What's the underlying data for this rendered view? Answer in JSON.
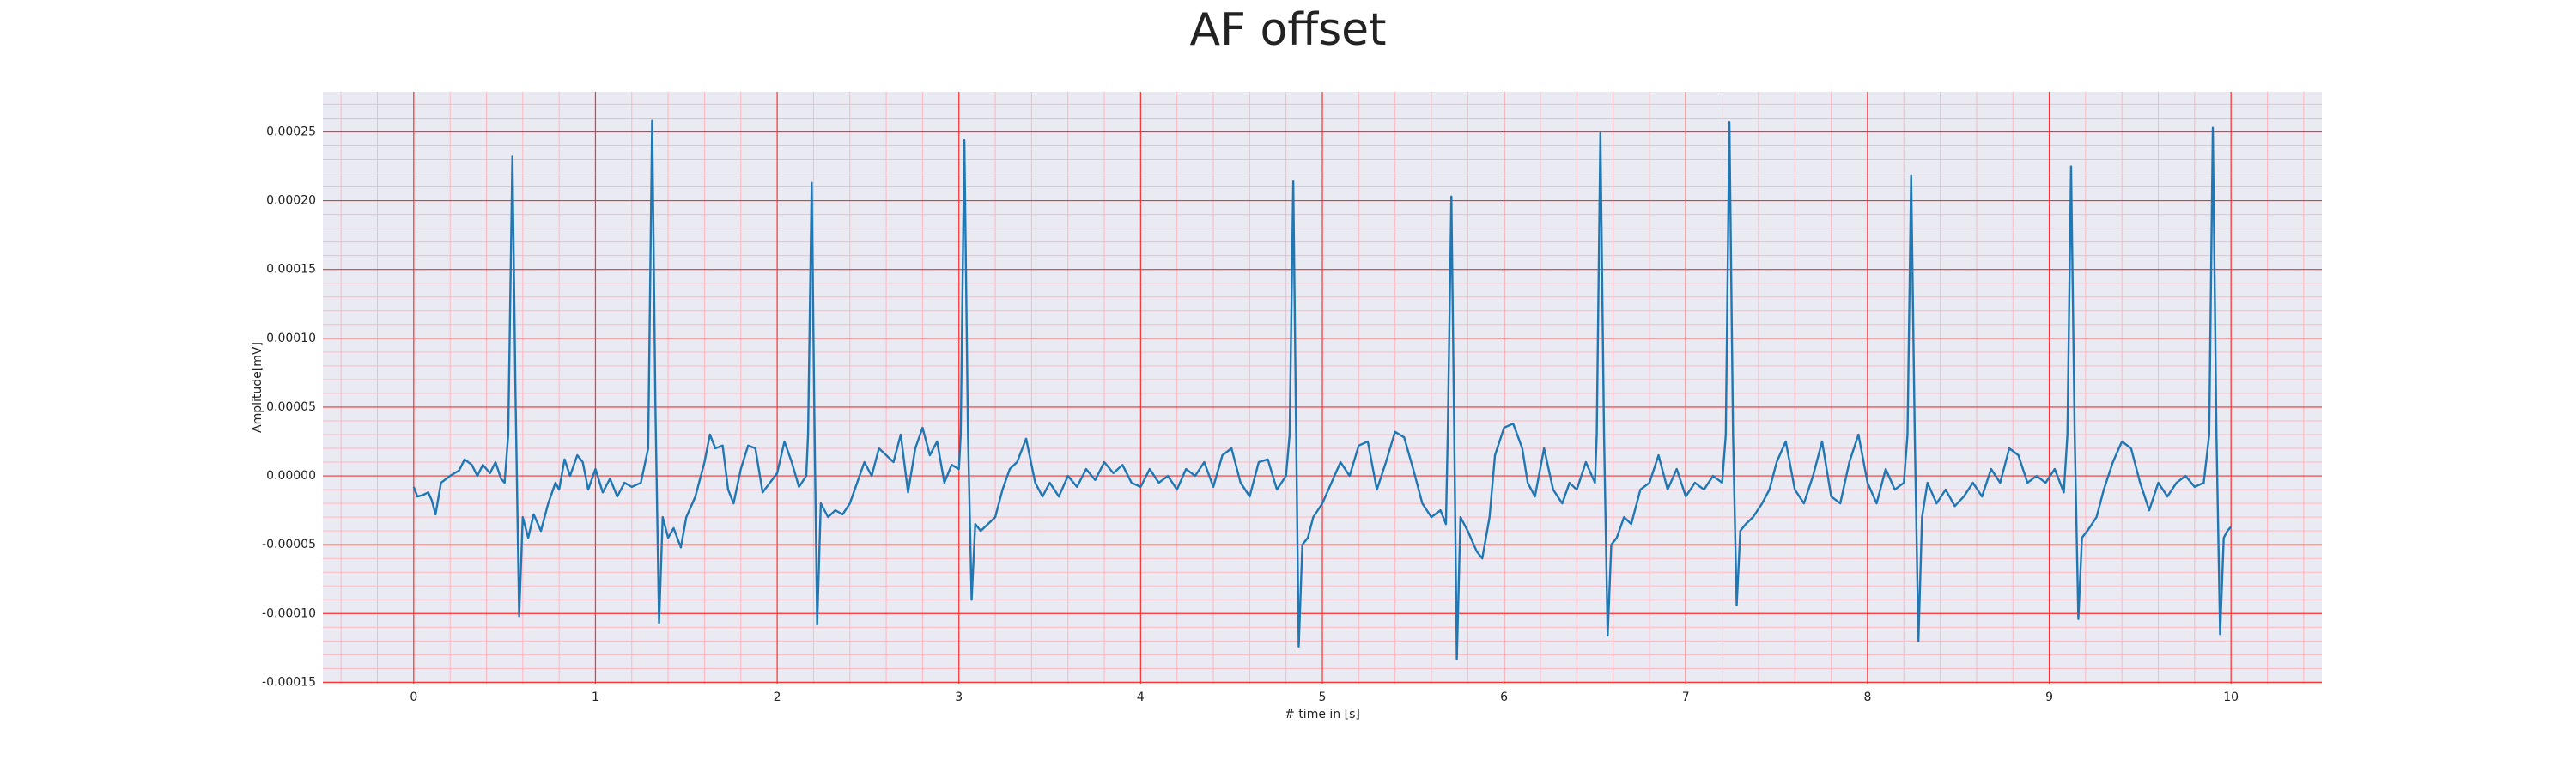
{
  "chart_data": {
    "type": "line",
    "title": "AF offset",
    "xlabel": "# time in [s]",
    "ylabel": "Amplitude[mV]",
    "color": "#1f77b4",
    "grid": true,
    "minor_grid": true,
    "xlim": [
      -0.5,
      10.5
    ],
    "xticks": [
      0,
      1,
      2,
      3,
      4,
      5,
      6,
      7,
      8,
      9,
      10
    ],
    "ylim": [
      -0.000151,
      0.000279
    ],
    "yticks": [
      {
        "value": -0.00015,
        "label": "-0.00015"
      },
      {
        "value": -0.0001,
        "label": "-0.00010"
      },
      {
        "value": -5e-05,
        "label": "-0.00005"
      },
      {
        "value": 0,
        "label": "0.00000"
      },
      {
        "value": 5e-05,
        "label": "0.00005"
      },
      {
        "value": 0.0001,
        "label": "0.00010"
      },
      {
        "value": 0.00015,
        "label": "0.00015"
      },
      {
        "value": 0.0002,
        "label": "0.00020"
      },
      {
        "value": 0.00025,
        "label": "0.00025"
      }
    ],
    "x": [
      0,
      0.02,
      0.05,
      0.08,
      0.1,
      0.12,
      0.15,
      0.2,
      0.25,
      0.28,
      0.32,
      0.35,
      0.38,
      0.42,
      0.45,
      0.48,
      0.5,
      0.52,
      0.543,
      0.56,
      0.58,
      0.6,
      0.63,
      0.66,
      0.7,
      0.74,
      0.78,
      0.8,
      0.83,
      0.86,
      0.9,
      0.93,
      0.96,
      1.0,
      1.04,
      1.08,
      1.12,
      1.16,
      1.2,
      1.25,
      1.29,
      1.312,
      1.33,
      1.35,
      1.37,
      1.4,
      1.43,
      1.47,
      1.5,
      1.55,
      1.6,
      1.63,
      1.66,
      1.7,
      1.73,
      1.76,
      1.8,
      1.84,
      1.88,
      1.92,
      1.96,
      2.0,
      2.04,
      2.08,
      2.12,
      2.16,
      2.17,
      2.19,
      2.205,
      2.22,
      2.24,
      2.28,
      2.32,
      2.36,
      2.4,
      2.44,
      2.48,
      2.52,
      2.56,
      2.6,
      2.64,
      2.68,
      2.72,
      2.76,
      2.8,
      2.84,
      2.88,
      2.92,
      2.96,
      3.0,
      3.01,
      3.03,
      3.05,
      3.07,
      3.09,
      3.12,
      3.16,
      3.2,
      3.24,
      3.28,
      3.32,
      3.37,
      3.42,
      3.46,
      3.5,
      3.55,
      3.6,
      3.65,
      3.7,
      3.75,
      3.8,
      3.85,
      3.9,
      3.95,
      4.0,
      4.05,
      4.1,
      4.15,
      4.2,
      4.25,
      4.3,
      4.35,
      4.4,
      4.45,
      4.5,
      4.55,
      4.6,
      4.65,
      4.7,
      4.75,
      4.8,
      4.82,
      4.84,
      4.855,
      4.87,
      4.89,
      4.92,
      4.95,
      5.0,
      5.05,
      5.1,
      5.15,
      5.2,
      5.25,
      5.3,
      5.35,
      5.4,
      5.45,
      5.5,
      5.55,
      5.6,
      5.65,
      5.68,
      5.69,
      5.71,
      5.725,
      5.74,
      5.76,
      5.8,
      5.85,
      5.88,
      5.92,
      5.95,
      6.0,
      6.05,
      6.1,
      6.13,
      6.17,
      6.22,
      6.27,
      6.32,
      6.36,
      6.4,
      6.45,
      6.5,
      6.51,
      6.53,
      6.55,
      6.57,
      6.59,
      6.62,
      6.66,
      6.7,
      6.75,
      6.8,
      6.85,
      6.9,
      6.95,
      7.0,
      7.05,
      7.1,
      7.15,
      7.2,
      7.22,
      7.24,
      7.26,
      7.28,
      7.3,
      7.33,
      7.37,
      7.42,
      7.46,
      7.5,
      7.55,
      7.6,
      7.65,
      7.7,
      7.75,
      7.8,
      7.85,
      7.9,
      7.95,
      8.0,
      8.05,
      8.1,
      8.15,
      8.2,
      8.22,
      8.24,
      8.26,
      8.28,
      8.3,
      8.33,
      8.38,
      8.43,
      8.48,
      8.53,
      8.58,
      8.63,
      8.68,
      8.73,
      8.78,
      8.83,
      8.88,
      8.93,
      8.98,
      9.03,
      9.08,
      9.1,
      9.12,
      9.14,
      9.16,
      9.18,
      9.22,
      9.26,
      9.3,
      9.35,
      9.4,
      9.45,
      9.5,
      9.55,
      9.6,
      9.65,
      9.7,
      9.75,
      9.8,
      9.85,
      9.88,
      9.9,
      9.92,
      9.94,
      9.96,
      9.98,
      10.0
    ],
    "values": [
      -8e-06,
      -1.5e-05,
      -1.4e-05,
      -1.2e-05,
      -1.8e-05,
      -2.8e-05,
      -5e-06,
      0,
      4e-06,
      1.2e-05,
      8e-06,
      0,
      8e-06,
      2e-06,
      1e-05,
      -2e-06,
      -5e-06,
      3e-05,
      0.000232,
      6e-05,
      -0.000102,
      -3e-05,
      -4.5e-05,
      -2.8e-05,
      -4e-05,
      -2e-05,
      -5e-06,
      -1e-05,
      1.2e-05,
      0,
      1.5e-05,
      1e-05,
      -1e-05,
      5e-06,
      -1.2e-05,
      -2e-06,
      -1.5e-05,
      -5e-06,
      -8e-06,
      -5e-06,
      2e-05,
      0.000258,
      5e-05,
      -0.000107,
      -3e-05,
      -4.5e-05,
      -3.8e-05,
      -5.2e-05,
      -3e-05,
      -1.5e-05,
      1e-05,
      3e-05,
      2e-05,
      2.2e-05,
      -1e-05,
      -2e-05,
      5e-06,
      2.2e-05,
      2e-05,
      -1.2e-05,
      -5e-06,
      2e-06,
      2.5e-05,
      1e-05,
      -8e-06,
      0,
      3e-05,
      0.000213,
      4e-05,
      -0.000108,
      -2e-05,
      -3e-05,
      -2.5e-05,
      -2.8e-05,
      -2e-05,
      -5e-06,
      1e-05,
      0,
      2e-05,
      1.5e-05,
      1e-05,
      3e-05,
      -1.2e-05,
      2e-05,
      3.5e-05,
      1.5e-05,
      2.5e-05,
      -5e-06,
      8e-06,
      5e-06,
      3e-05,
      0.000244,
      3e-05,
      -9e-05,
      -3.5e-05,
      -4e-05,
      -3.5e-05,
      -3e-05,
      -1e-05,
      5e-06,
      1e-05,
      2.7e-05,
      -5e-06,
      -1.5e-05,
      -5e-06,
      -1.5e-05,
      0,
      -8e-06,
      5e-06,
      -3e-06,
      1e-05,
      2e-06,
      8e-06,
      -5e-06,
      -8e-06,
      5e-06,
      -5e-06,
      0,
      -1e-05,
      5e-06,
      0,
      1e-05,
      -8e-06,
      1.5e-05,
      2e-05,
      -5e-06,
      -1.5e-05,
      1e-05,
      1.2e-05,
      -1e-05,
      0,
      3e-05,
      0.000214,
      4e-05,
      -0.000124,
      -5e-05,
      -4.5e-05,
      -3e-05,
      -2e-05,
      -5e-06,
      1e-05,
      0,
      2.2e-05,
      2.5e-05,
      -1e-05,
      1e-05,
      3.2e-05,
      2.8e-05,
      5e-06,
      -2e-05,
      -3e-05,
      -2.5e-05,
      -3.5e-05,
      3e-05,
      0.000203,
      4e-05,
      -0.000133,
      -3e-05,
      -4e-05,
      -5.5e-05,
      -6e-05,
      -3e-05,
      1.5e-05,
      3.5e-05,
      3.8e-05,
      2e-05,
      -5e-06,
      -1.5e-05,
      2e-05,
      -1e-05,
      -2e-05,
      -5e-06,
      -1e-05,
      1e-05,
      -5e-06,
      3e-05,
      0.000249,
      3e-05,
      -0.000116,
      -5e-05,
      -4.5e-05,
      -3e-05,
      -3.5e-05,
      -1e-05,
      -5e-06,
      1.5e-05,
      -1e-05,
      5e-06,
      -1.5e-05,
      -5e-06,
      -1e-05,
      0,
      -5e-06,
      3e-05,
      0.000257,
      3e-05,
      -9.4e-05,
      -4e-05,
      -3.5e-05,
      -3e-05,
      -2e-05,
      -1e-05,
      1e-05,
      2.5e-05,
      -1e-05,
      -2e-05,
      0,
      2.5e-05,
      -1.5e-05,
      -2e-05,
      1e-05,
      3e-05,
      -5e-06,
      -2e-05,
      5e-06,
      -1e-05,
      -5e-06,
      3e-05,
      0.000218,
      3e-05,
      -0.00012,
      -3e-05,
      -5e-06,
      -2e-05,
      -1e-05,
      -2.2e-05,
      -1.5e-05,
      -5e-06,
      -1.5e-05,
      5e-06,
      -5e-06,
      2e-05,
      1.5e-05,
      -5e-06,
      0,
      -5e-06,
      5e-06,
      -1.2e-05,
      3e-05,
      0.000225,
      3e-05,
      -0.000104,
      -4.5e-05,
      -3.8e-05,
      -3e-05,
      -1e-05,
      1e-05,
      2.5e-05,
      2e-05,
      -5e-06,
      -2.5e-05,
      -5e-06,
      -1.5e-05,
      -5e-06,
      0,
      -8e-06,
      -5e-06,
      3e-05,
      0.000253,
      3e-05,
      -0.000115,
      -4.5e-05,
      -4e-05,
      -3.7e-05
    ]
  }
}
